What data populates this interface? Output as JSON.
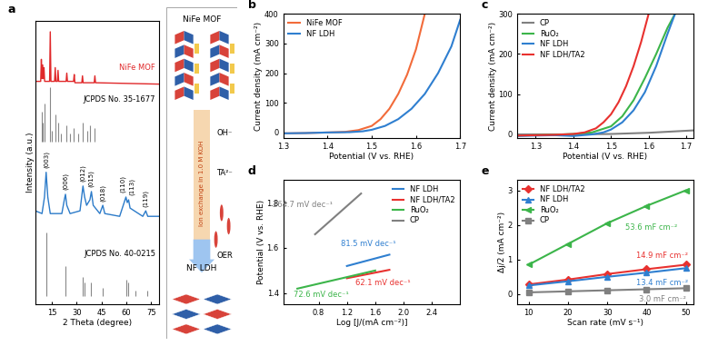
{
  "chart_data": [
    {
      "type": "line",
      "panel": "a",
      "x_label": "2 Theta (degree)",
      "y_label": "Intensity (a.u.)",
      "xlim": [
        5,
        80
      ],
      "xticks": [
        15,
        30,
        45,
        60,
        75
      ],
      "ylim": [
        0,
        10.3
      ],
      "tick_labels": "x",
      "series": [
        {
          "name": "NiFe MOF",
          "type": "line",
          "color": "#e0282a",
          "x": [
            5,
            8.2,
            8.6,
            9.0,
            9.4,
            9.8,
            10.2,
            10.6,
            13.6,
            14.0,
            14.4,
            16.6,
            17.0,
            17.4,
            18.3,
            18.7,
            19.1,
            23.6,
            24.0,
            24.4,
            28.1,
            28.5,
            28.9,
            33.1,
            33.5,
            33.9,
            40.6,
            41.0,
            41.4,
            80
          ],
          "values": [
            8.1,
            8.1,
            8.9,
            8.2,
            8.7,
            8.2,
            8.6,
            8.1,
            8.1,
            9.9,
            8.1,
            8.1,
            8.6,
            8.1,
            8.1,
            8.5,
            8.1,
            8.1,
            8.4,
            8.1,
            8.1,
            8.35,
            8.05,
            8.05,
            8.3,
            8.05,
            8.05,
            8.3,
            8.05,
            8.0
          ]
        },
        {
          "name": "JCPDS No. 35-1677",
          "type": "stick",
          "color": "#888888",
          "base": 5.9,
          "x": [
            8.8,
            9.4,
            10.3,
            14.0,
            15.2,
            17.1,
            18.7,
            20.2,
            23.9,
            26.0,
            28.4,
            31.0,
            33.4,
            36.2,
            38.0,
            41.0
          ],
          "values": [
            7.0,
            6.6,
            7.3,
            7.9,
            6.3,
            6.9,
            6.6,
            6.2,
            6.5,
            6.2,
            6.4,
            6.2,
            6.6,
            6.3,
            6.5,
            6.4
          ]
        },
        {
          "type": "line",
          "color": "#2c7bc9",
          "x": [
            5,
            9,
            10.5,
            11.5,
            12.5,
            14,
            21,
            22.5,
            23.2,
            24,
            26,
            32,
            33.8,
            34.8,
            36,
            38,
            38.9,
            40,
            44,
            45.8,
            47,
            56,
            59.8,
            60.6,
            61.4,
            62.3,
            70,
            71.8,
            73,
            80
          ],
          "values": [
            3.4,
            3.3,
            3.9,
            4.8,
            3.9,
            3.3,
            3.3,
            3.8,
            4.0,
            3.6,
            3.3,
            3.4,
            4.3,
            3.9,
            3.6,
            3.8,
            4.1,
            3.6,
            3.3,
            3.6,
            3.3,
            3.2,
            3.9,
            3.7,
            3.8,
            3.5,
            3.2,
            3.4,
            3.2,
            3.2
          ],
          "peak_labels": [
            {
              "label": "(003)",
              "x": 11.5
            },
            {
              "label": "(006)",
              "x": 23.2
            },
            {
              "label": "(012)",
              "x": 33.8
            },
            {
              "label": "(015)",
              "x": 38.9
            },
            {
              "label": "(018)",
              "x": 45.8
            },
            {
              "label": "(110)",
              "x": 59.8
            },
            {
              "label": "(113)",
              "x": 61.4
            },
            {
              "label": "(119)",
              "x": 71.8
            }
          ]
        },
        {
          "name": "JCPDS No. 40-0215",
          "type": "stick",
          "color": "#888888",
          "base": 0.3,
          "x": [
            11.4,
            23.0,
            33.5,
            34.5,
            38.8,
            46.0,
            59.9,
            61.3,
            65.5,
            72.6
          ],
          "values": [
            2.6,
            1.4,
            1.0,
            0.8,
            0.8,
            0.6,
            0.9,
            0.8,
            0.5,
            0.5
          ]
        }
      ]
    },
    {
      "type": "line",
      "panel": "b",
      "x_label": "Potential (V vs. RHE)",
      "y_label": "Current density (mA cm⁻²)",
      "xlim": [
        1.3,
        1.7
      ],
      "xticks": [
        1.3,
        1.4,
        1.5,
        1.6,
        1.7
      ],
      "ylim": [
        -20,
        400
      ],
      "yticks": [
        0,
        100,
        200,
        300,
        400
      ],
      "legend": "upper left",
      "series": [
        {
          "name": "NiFe MOF",
          "color": "#f26b3a",
          "x": [
            1.3,
            1.35,
            1.4,
            1.44,
            1.47,
            1.5,
            1.52,
            1.54,
            1.56,
            1.58,
            1.6,
            1.62
          ],
          "values": [
            -3,
            -2,
            0,
            2,
            8,
            22,
            45,
            80,
            130,
            195,
            280,
            400
          ]
        },
        {
          "name": "NF LDH",
          "color": "#2f7fd0",
          "x": [
            1.3,
            1.35,
            1.4,
            1.45,
            1.48,
            1.5,
            1.53,
            1.56,
            1.59,
            1.62,
            1.65,
            1.68,
            1.7
          ],
          "values": [
            -3,
            -2,
            0,
            1,
            4,
            9,
            22,
            45,
            80,
            130,
            200,
            290,
            380
          ]
        }
      ]
    },
    {
      "type": "line",
      "panel": "c",
      "x_label": "Potential (V vs. RHE)",
      "y_label": "Current density (mA cm⁻²)",
      "xlim": [
        1.25,
        1.72
      ],
      "xticks": [
        1.3,
        1.4,
        1.5,
        1.6,
        1.7
      ],
      "ylim": [
        -10,
        300
      ],
      "yticks": [
        0,
        100,
        200,
        300
      ],
      "legend": "upper left",
      "series": [
        {
          "name": "CP",
          "color": "#808080",
          "x": [
            1.25,
            1.4,
            1.5,
            1.6,
            1.72
          ],
          "values": [
            0,
            0,
            1,
            4,
            10
          ]
        },
        {
          "name": "RuO₂",
          "color": "#3cb54a",
          "x": [
            1.25,
            1.35,
            1.4,
            1.45,
            1.5,
            1.53,
            1.56,
            1.59,
            1.62,
            1.65,
            1.67
          ],
          "values": [
            -3,
            -1,
            1,
            5,
            20,
            45,
            85,
            140,
            200,
            265,
            300
          ]
        },
        {
          "name": "NF LDH",
          "color": "#2f7fd0",
          "x": [
            1.25,
            1.35,
            1.4,
            1.45,
            1.48,
            1.5,
            1.53,
            1.56,
            1.59,
            1.62,
            1.65,
            1.67
          ],
          "values": [
            -4,
            -2,
            -4,
            0,
            5,
            12,
            30,
            60,
            105,
            170,
            250,
            300
          ]
        },
        {
          "name": "NF LDH/TA2",
          "color": "#e8312f",
          "x": [
            1.25,
            1.35,
            1.4,
            1.43,
            1.46,
            1.48,
            1.5,
            1.52,
            1.54,
            1.56,
            1.58,
            1.6
          ],
          "values": [
            -3,
            -1,
            1,
            5,
            15,
            30,
            50,
            80,
            120,
            170,
            230,
            300
          ]
        }
      ]
    },
    {
      "type": "line",
      "panel": "d",
      "x_label": "Log [J/(mA cm⁻²)]",
      "y_label": "Potential (V vs. RHE)",
      "xlim": [
        0.3,
        2.8
      ],
      "xticks": [
        0.8,
        1.2,
        1.6,
        2.0,
        2.4
      ],
      "ylim": [
        1.35,
        1.9
      ],
      "yticks": [
        1.4,
        1.6,
        1.8
      ],
      "legend": "upper right",
      "series": [
        {
          "name": "NF LDH",
          "color": "#2f7fd0",
          "x": [
            1.2,
            1.8
          ],
          "values": [
            1.52,
            1.57
          ],
          "annotation": "81.5 mV dec⁻¹"
        },
        {
          "name": "NF LDH/TA2",
          "color": "#e8312f",
          "x": [
            1.2,
            1.8
          ],
          "values": [
            1.466,
            1.503
          ],
          "annotation": "62.1 mV dec⁻¹"
        },
        {
          "name": "RuO₂",
          "color": "#3cb54a",
          "x": [
            0.5,
            1.6
          ],
          "values": [
            1.42,
            1.5
          ],
          "annotation": "72.6 mV dec⁻¹"
        },
        {
          "name": "CP",
          "color": "#808080",
          "x": [
            0.75,
            1.4
          ],
          "values": [
            1.66,
            1.84
          ],
          "annotation": "264.7 mV dec⁻¹"
        }
      ]
    },
    {
      "type": "line",
      "panel": "e",
      "x_label": "Scan rate (mV s⁻¹)",
      "y_label": "Δj/2 (mA cm⁻²)",
      "xlim": [
        7,
        52
      ],
      "xticks": [
        10,
        20,
        30,
        40,
        50
      ],
      "ylim": [
        -0.3,
        3.3
      ],
      "yticks": [
        0,
        1,
        2,
        3
      ],
      "legend": "upper left",
      "series": [
        {
          "name": "NF LDH/TA2",
          "color": "#e8312f",
          "marker": "diamond",
          "x": [
            10,
            20,
            30,
            40,
            50
          ],
          "values": [
            0.28,
            0.42,
            0.58,
            0.72,
            0.85
          ],
          "annotation": "14.9 mF cm⁻²"
        },
        {
          "name": "NF LDH",
          "color": "#2f7fd0",
          "marker": "triangle_up",
          "x": [
            10,
            20,
            30,
            40,
            50
          ],
          "values": [
            0.25,
            0.37,
            0.5,
            0.62,
            0.75
          ],
          "annotation": "13.4 mF cm⁻²"
        },
        {
          "name": "RuO₂",
          "color": "#3cb54a",
          "marker": "triangle_left",
          "x": [
            10,
            20,
            30,
            40,
            50
          ],
          "values": [
            0.85,
            1.45,
            2.05,
            2.55,
            3.0
          ],
          "annotation": "53.6 mF cm⁻²"
        },
        {
          "name": "CP",
          "color": "#808080",
          "marker": "square",
          "x": [
            10,
            20,
            30,
            40,
            50
          ],
          "values": [
            0.05,
            0.08,
            0.11,
            0.14,
            0.17
          ],
          "annotation": "3.0 mF cm⁻²"
        }
      ]
    }
  ],
  "diagram": {
    "top_label": "NiFe MOF",
    "process": "Ion exchange in 1.0 M KOH",
    "species_in": "OH⁻",
    "species_out": "TA²⁻",
    "bottom_label": "NF LDH",
    "product": "OER"
  }
}
